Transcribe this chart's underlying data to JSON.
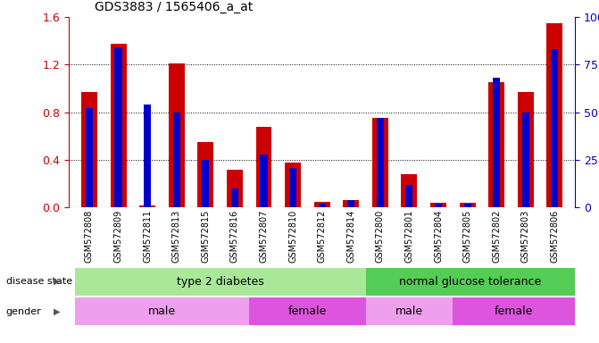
{
  "title": "GDS3883 / 1565406_a_at",
  "samples": [
    "GSM572808",
    "GSM572809",
    "GSM572811",
    "GSM572813",
    "GSM572815",
    "GSM572816",
    "GSM572807",
    "GSM572810",
    "GSM572812",
    "GSM572814",
    "GSM572800",
    "GSM572801",
    "GSM572804",
    "GSM572805",
    "GSM572802",
    "GSM572803",
    "GSM572806"
  ],
  "red_values": [
    0.97,
    1.38,
    0.02,
    1.21,
    0.55,
    0.32,
    0.68,
    0.38,
    0.05,
    0.06,
    0.75,
    0.28,
    0.04,
    0.04,
    1.05,
    0.97,
    1.55
  ],
  "blue_pct": [
    52,
    84,
    54,
    50,
    25,
    10,
    28,
    21,
    2,
    4,
    47,
    12,
    2,
    2,
    68,
    50,
    83
  ],
  "ylim_left": [
    0,
    1.6
  ],
  "ylim_right": [
    0,
    100
  ],
  "yticks_left": [
    0,
    0.4,
    0.8,
    1.2,
    1.6
  ],
  "yticks_right": [
    0,
    25,
    50,
    75,
    100
  ],
  "color_red": "#cc0000",
  "color_blue": "#0000cc",
  "color_green_light": "#aae899",
  "color_green_dark": "#55cc55",
  "color_pink_light": "#eea0ee",
  "color_pink_dark": "#dd55dd",
  "bar_width": 0.55,
  "blue_bar_width": 0.25
}
